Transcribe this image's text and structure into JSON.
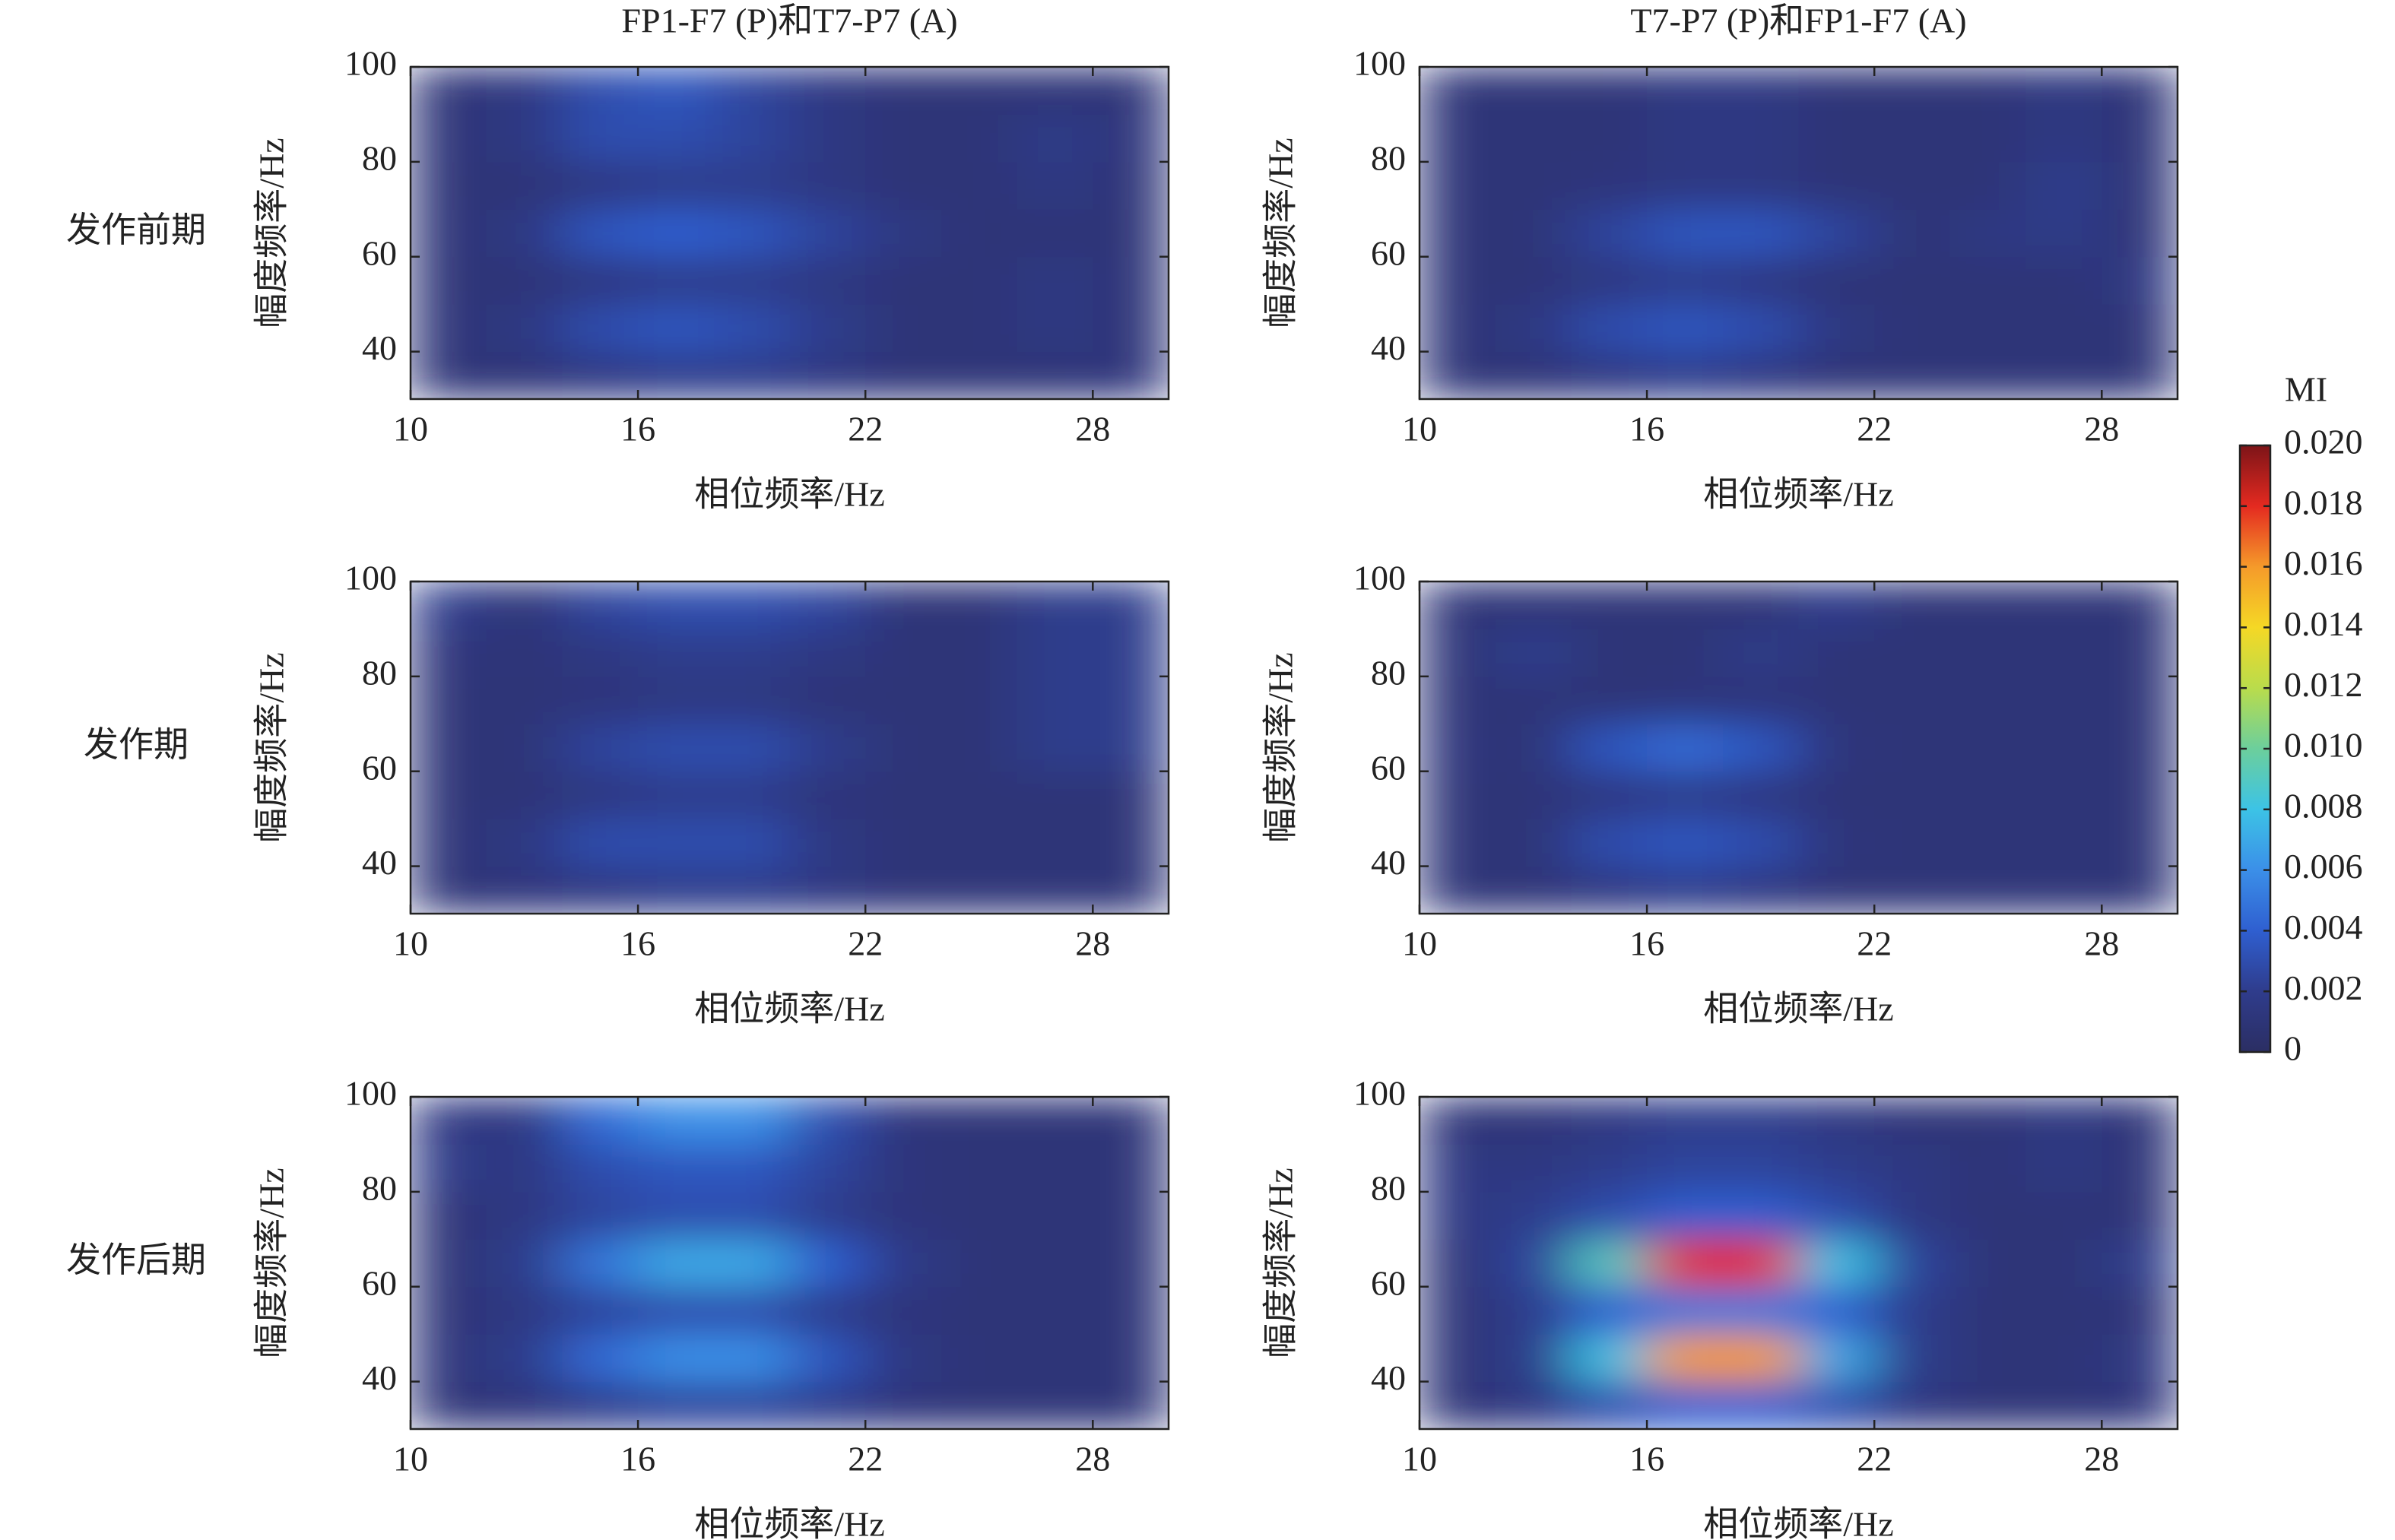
{
  "chart_data": [
    {
      "type": "heatmap",
      "title": "FP1-F7 (P)和T7-P7 (A)",
      "row_label": "发作前期",
      "xlabel": "相位频率/Hz",
      "ylabel": "幅度频率/Hz",
      "x": [
        11,
        13,
        15,
        17,
        19,
        21,
        23,
        25,
        27,
        29
      ],
      "y": [
        35,
        45,
        55,
        65,
        75,
        85,
        95
      ],
      "z": [
        [
          0.001,
          0.001,
          0.0015,
          0.002,
          0.002,
          0.0015,
          0.001,
          0.001,
          0.001,
          0.0012
        ],
        [
          0.001,
          0.0015,
          0.003,
          0.0035,
          0.003,
          0.002,
          0.001,
          0.001,
          0.0015,
          0.001
        ],
        [
          0.001,
          0.001,
          0.0015,
          0.002,
          0.002,
          0.0015,
          0.001,
          0.001,
          0.0015,
          0.001
        ],
        [
          0.001,
          0.0015,
          0.0035,
          0.004,
          0.0035,
          0.0025,
          0.0015,
          0.001,
          0.001,
          0.001
        ],
        [
          0.001,
          0.001,
          0.0015,
          0.002,
          0.002,
          0.0015,
          0.001,
          0.001,
          0.0015,
          0.001
        ],
        [
          0.001,
          0.0015,
          0.003,
          0.003,
          0.0025,
          0.0015,
          0.001,
          0.001,
          0.0018,
          0.0012
        ],
        [
          0.001,
          0.0015,
          0.003,
          0.0035,
          0.0025,
          0.0015,
          0.001,
          0.001,
          0.001,
          0.001
        ]
      ],
      "xlim": [
        10,
        30
      ],
      "ylim": [
        30,
        100
      ],
      "xticks": [
        10,
        16,
        22,
        28
      ],
      "yticks": [
        40,
        60,
        80,
        100
      ]
    },
    {
      "type": "heatmap",
      "title": "T7-P7 (P)和FP1-F7 (A)",
      "xlabel": "相位频率/Hz",
      "ylabel": "幅度频率/Hz",
      "x": [
        11,
        13,
        15,
        17,
        19,
        21,
        23,
        25,
        27,
        29
      ],
      "y": [
        35,
        45,
        55,
        65,
        75,
        85,
        95
      ],
      "z": [
        [
          0.001,
          0.001,
          0.0015,
          0.002,
          0.0015,
          0.001,
          0.001,
          0.001,
          0.001,
          0.001
        ],
        [
          0.001,
          0.0015,
          0.003,
          0.0035,
          0.003,
          0.0015,
          0.001,
          0.001,
          0.001,
          0.001
        ],
        [
          0.001,
          0.001,
          0.0015,
          0.002,
          0.0015,
          0.001,
          0.001,
          0.001,
          0.001,
          0.0015
        ],
        [
          0.001,
          0.001,
          0.0025,
          0.0035,
          0.0035,
          0.0025,
          0.001,
          0.0015,
          0.0018,
          0.001
        ],
        [
          0.001,
          0.001,
          0.0012,
          0.0015,
          0.0015,
          0.001,
          0.001,
          0.001,
          0.002,
          0.001
        ],
        [
          0.001,
          0.001,
          0.001,
          0.0015,
          0.0015,
          0.001,
          0.001,
          0.001,
          0.0015,
          0.001
        ],
        [
          0.001,
          0.001,
          0.001,
          0.0015,
          0.0015,
          0.001,
          0.001,
          0.001,
          0.0015,
          0.001
        ]
      ],
      "xlim": [
        10,
        30
      ],
      "ylim": [
        30,
        100
      ],
      "xticks": [
        10,
        16,
        22,
        28
      ],
      "yticks": [
        40,
        60,
        80,
        100
      ]
    },
    {
      "type": "heatmap",
      "row_label": "发作期",
      "xlabel": "相位频率/Hz",
      "ylabel": "幅度频率/Hz",
      "x": [
        11,
        13,
        15,
        17,
        19,
        21,
        23,
        25,
        27,
        29
      ],
      "y": [
        35,
        45,
        55,
        65,
        75,
        85,
        95
      ],
      "z": [
        [
          0.001,
          0.0012,
          0.0015,
          0.002,
          0.002,
          0.0015,
          0.001,
          0.001,
          0.001,
          0.001
        ],
        [
          0.001,
          0.0015,
          0.003,
          0.003,
          0.003,
          0.0015,
          0.001,
          0.001,
          0.001,
          0.001
        ],
        [
          0.001,
          0.001,
          0.0015,
          0.002,
          0.002,
          0.0012,
          0.001,
          0.001,
          0.001,
          0.001
        ],
        [
          0.001,
          0.001,
          0.0025,
          0.003,
          0.003,
          0.002,
          0.001,
          0.001,
          0.002,
          0.002
        ],
        [
          0.001,
          0.001,
          0.0012,
          0.0015,
          0.0015,
          0.001,
          0.001,
          0.001,
          0.002,
          0.002
        ],
        [
          0.0012,
          0.001,
          0.0015,
          0.002,
          0.002,
          0.0015,
          0.001,
          0.001,
          0.002,
          0.002
        ],
        [
          0.002,
          0.001,
          0.0025,
          0.003,
          0.003,
          0.0025,
          0.001,
          0.001,
          0.002,
          0.002
        ]
      ],
      "xlim": [
        10,
        30
      ],
      "ylim": [
        30,
        100
      ],
      "xticks": [
        10,
        16,
        22,
        28
      ],
      "yticks": [
        40,
        60,
        80,
        100
      ]
    },
    {
      "type": "heatmap",
      "xlabel": "相位频率/Hz",
      "ylabel": "幅度频率/Hz",
      "x": [
        11,
        13,
        15,
        17,
        19,
        21,
        23,
        25,
        27,
        29
      ],
      "y": [
        35,
        45,
        55,
        65,
        75,
        85,
        95
      ],
      "z": [
        [
          0.001,
          0.001,
          0.0015,
          0.002,
          0.0015,
          0.001,
          0.001,
          0.001,
          0.001,
          0.001
        ],
        [
          0.001,
          0.001,
          0.003,
          0.0035,
          0.003,
          0.0012,
          0.001,
          0.001,
          0.001,
          0.001
        ],
        [
          0.001,
          0.001,
          0.0015,
          0.002,
          0.0015,
          0.001,
          0.001,
          0.001,
          0.001,
          0.001
        ],
        [
          0.0012,
          0.001,
          0.0035,
          0.0045,
          0.0035,
          0.0012,
          0.001,
          0.001,
          0.001,
          0.001
        ],
        [
          0.001,
          0.001,
          0.001,
          0.0012,
          0.0012,
          0.001,
          0.001,
          0.001,
          0.001,
          0.001
        ],
        [
          0.001,
          0.002,
          0.001,
          0.001,
          0.0018,
          0.001,
          0.001,
          0.001,
          0.001,
          0.001
        ],
        [
          0.001,
          0.001,
          0.001,
          0.001,
          0.001,
          0.002,
          0.001,
          0.001,
          0.001,
          0.001
        ]
      ],
      "xlim": [
        10,
        30
      ],
      "ylim": [
        30,
        100
      ],
      "xticks": [
        10,
        16,
        22,
        28
      ],
      "yticks": [
        40,
        60,
        80,
        100
      ]
    },
    {
      "type": "heatmap",
      "row_label": "发作后期",
      "xlabel": "相位频率/Hz",
      "ylabel": "幅度频率/Hz",
      "x": [
        11,
        13,
        15,
        17,
        19,
        21,
        23,
        25,
        27,
        29
      ],
      "y": [
        35,
        45,
        55,
        65,
        75,
        85,
        95
      ],
      "z": [
        [
          0.001,
          0.0012,
          0.002,
          0.0025,
          0.0025,
          0.002,
          0.0012,
          0.001,
          0.001,
          0.001
        ],
        [
          0.0012,
          0.002,
          0.0045,
          0.006,
          0.006,
          0.0035,
          0.0015,
          0.001,
          0.001,
          0.001
        ],
        [
          0.001,
          0.0015,
          0.0025,
          0.003,
          0.003,
          0.002,
          0.0012,
          0.001,
          0.001,
          0.001
        ],
        [
          0.001,
          0.002,
          0.005,
          0.007,
          0.007,
          0.004,
          0.0018,
          0.001,
          0.001,
          0.001
        ],
        [
          0.001,
          0.0015,
          0.0025,
          0.003,
          0.003,
          0.002,
          0.0012,
          0.001,
          0.001,
          0.001
        ],
        [
          0.0018,
          0.0015,
          0.003,
          0.0035,
          0.0035,
          0.0025,
          0.0012,
          0.001,
          0.001,
          0.001
        ],
        [
          0.0015,
          0.0015,
          0.0045,
          0.006,
          0.006,
          0.003,
          0.0012,
          0.001,
          0.001,
          0.001
        ]
      ],
      "xlim": [
        10,
        30
      ],
      "ylim": [
        30,
        100
      ],
      "xticks": [
        10,
        16,
        22,
        28
      ],
      "yticks": [
        40,
        60,
        80,
        100
      ]
    },
    {
      "type": "heatmap",
      "xlabel": "相位频率/Hz",
      "ylabel": "幅度频率/Hz",
      "x": [
        11,
        13,
        15,
        17,
        19,
        21,
        23,
        25,
        27,
        29
      ],
      "y": [
        35,
        45,
        55,
        65,
        75,
        85,
        95
      ],
      "z": [
        [
          0.001,
          0.0015,
          0.003,
          0.004,
          0.004,
          0.003,
          0.0015,
          0.001,
          0.001,
          0.0012
        ],
        [
          0.001,
          0.002,
          0.008,
          0.016,
          0.016,
          0.007,
          0.002,
          0.001,
          0.001,
          0.0015
        ],
        [
          0.001,
          0.002,
          0.004,
          0.005,
          0.005,
          0.004,
          0.002,
          0.001,
          0.001,
          0.001
        ],
        [
          0.001,
          0.0025,
          0.009,
          0.018,
          0.018,
          0.008,
          0.0025,
          0.001,
          0.001,
          0.002
        ],
        [
          0.0015,
          0.002,
          0.003,
          0.004,
          0.004,
          0.003,
          0.0015,
          0.001,
          0.001,
          0.001
        ],
        [
          0.0015,
          0.0015,
          0.002,
          0.0025,
          0.0025,
          0.002,
          0.0015,
          0.001,
          0.0015,
          0.001
        ],
        [
          0.001,
          0.001,
          0.0015,
          0.002,
          0.002,
          0.0015,
          0.001,
          0.001,
          0.0015,
          0.001
        ]
      ],
      "xlim": [
        10,
        30
      ],
      "ylim": [
        30,
        100
      ],
      "xticks": [
        10,
        16,
        22,
        28
      ],
      "yticks": [
        40,
        60,
        80,
        100
      ]
    }
  ],
  "colorbar": {
    "label": "MI",
    "clim": [
      0,
      0.02
    ],
    "ticks": [
      0,
      0.002,
      0.004,
      0.006,
      0.008,
      {
        "value": 0.01,
        "label": "0.010"
      },
      0.012,
      0.014,
      0.016,
      0.018,
      {
        "value": 0.02,
        "label": "0.020"
      }
    ],
    "colormap": [
      "#2b2e63",
      "#2f3c8c",
      "#2f5fd0",
      "#3b8fe8",
      "#3cc3e6",
      "#6ccf9c",
      "#b9dc4c",
      "#f5d825",
      "#f59a2a",
      "#e42a20",
      "#7d1418"
    ]
  }
}
